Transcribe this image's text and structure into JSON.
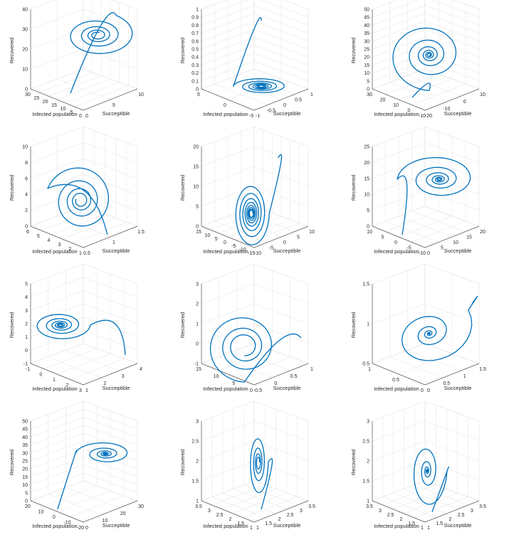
{
  "chart_data": [
    {
      "type": "line",
      "style": "spiral",
      "xlabel": "Infected population",
      "ylabel": "Succeptible",
      "zlabel": "Recovered",
      "xticks": [
        "30",
        "25",
        "20",
        "15",
        "10",
        "5",
        "0"
      ],
      "yticks": [
        "0",
        "5",
        "10"
      ],
      "zticks": [
        "0",
        "10",
        "20",
        "30",
        "40"
      ],
      "spiral": {
        "turns": 4,
        "start_angle": 300,
        "cx": 0.62,
        "cy": 0.22,
        "r": 0.38,
        "decay": 0.52,
        "ry_ratio": 0.7,
        "entry": [
          0.35,
          0.9
        ]
      }
    },
    {
      "type": "line",
      "style": "spiral",
      "xlabel": "Infected population",
      "ylabel": "Succeptible",
      "zlabel": "Recovered",
      "xticks": [
        "5",
        "0",
        "-5"
      ],
      "yticks": [
        "-1",
        "-0.5",
        "0",
        "0.5",
        "1"
      ],
      "zticks": [
        "0",
        "0.1",
        "0.2",
        "0.3",
        "0.4",
        "0.5",
        "0.6",
        "0.7",
        "0.8",
        "0.9",
        "1"
      ],
      "spiral": {
        "turns": 6,
        "start_angle": 180,
        "cx": 0.55,
        "cy": 0.82,
        "r": 0.28,
        "decay": 0.4,
        "ry_ratio": 0.35,
        "entry": [
          0.55,
          0.05
        ]
      }
    },
    {
      "type": "line",
      "style": "spiral",
      "xlabel": "Infected population",
      "ylabel": "Succeptible",
      "zlabel": "Recovered",
      "xticks": [
        "30",
        "20",
        "10",
        "0",
        "-10"
      ],
      "yticks": [
        "-20",
        "-10",
        "0",
        "10"
      ],
      "zticks": [
        "0",
        "5",
        "10",
        "15",
        "20",
        "25",
        "30",
        "35",
        "40",
        "45",
        "50"
      ],
      "spiral": {
        "turns": 6,
        "start_angle": 90,
        "cx": 0.52,
        "cy": 0.45,
        "r": 0.42,
        "decay": 0.6,
        "ry_ratio": 1.0,
        "entry": [
          0.35,
          0.95
        ]
      }
    },
    {
      "type": "line",
      "style": "spiral",
      "xlabel": "Infected population",
      "ylabel": "Succeptible",
      "zlabel": "Recovered",
      "xticks": [
        "6",
        "5",
        "4",
        "3",
        "2",
        "1"
      ],
      "yticks": [
        "0.5",
        "1",
        "1.5"
      ],
      "zticks": [
        "0",
        "2",
        "4",
        "6",
        "8",
        "10"
      ],
      "spiral": {
        "turns": 4,
        "start_angle": 200,
        "cx": 0.45,
        "cy": 0.55,
        "r": 0.35,
        "decay": 0.5,
        "ry_ratio": 1.2,
        "entry": [
          0.72,
          0.95
        ]
      }
    },
    {
      "type": "line",
      "style": "spiral",
      "xlabel": "Infected population",
      "ylabel": "Succeptible",
      "zlabel": "Recovered",
      "xticks": [
        "15",
        "10",
        "5",
        "0",
        "-5",
        "-10",
        "-15"
      ],
      "yticks": [
        "-10",
        "-5",
        "0",
        "5",
        "10"
      ],
      "zticks": [
        "0",
        "5",
        "10",
        "15",
        "20"
      ],
      "spiral": {
        "turns": 8,
        "start_angle": 0,
        "cx": 0.45,
        "cy": 0.7,
        "r": 0.18,
        "decay": 0.3,
        "ry_ratio": 2.2,
        "entry": [
          0.72,
          0.05
        ]
      }
    },
    {
      "type": "line",
      "style": "spiral",
      "xlabel": "Infected population",
      "ylabel": "Succeptible",
      "zlabel": "Recovered",
      "xticks": [
        "10",
        "5",
        "0",
        "-5",
        "-10"
      ],
      "yticks": [
        "0",
        "5",
        "10",
        "15",
        "20"
      ],
      "zticks": [
        "0",
        "5",
        "10",
        "15",
        "20",
        "25"
      ],
      "spiral": {
        "turns": 6,
        "start_angle": 180,
        "cx": 0.62,
        "cy": 0.3,
        "r": 0.42,
        "decay": 0.6,
        "ry_ratio": 0.7,
        "entry": [
          0.25,
          0.95
        ]
      }
    },
    {
      "type": "line",
      "style": "spiral",
      "xlabel": "Infected population",
      "ylabel": "Succeptible",
      "zlabel": "Recovered",
      "xticks": [
        "-1",
        "0",
        "1",
        "2",
        "3"
      ],
      "yticks": [
        "1",
        "2",
        "3",
        "4"
      ],
      "zticks": [
        "-1",
        "0",
        "1",
        "2",
        "3",
        "4",
        "5"
      ],
      "spiral": {
        "turns": 6,
        "start_angle": 0,
        "cx": 0.25,
        "cy": 0.4,
        "r": 0.3,
        "decay": 0.5,
        "ry_ratio": 0.6,
        "entry": [
          0.9,
          0.75
        ]
      }
    },
    {
      "type": "line",
      "style": "spiral",
      "xlabel": "Infected population",
      "ylabel": "Succeptible",
      "zlabel": "Recovered",
      "xticks": [
        "15",
        "10",
        "5",
        "0"
      ],
      "yticks": [
        "-0.5",
        "0",
        "0.5",
        "1"
      ],
      "zticks": [
        "-1",
        "0",
        "1",
        "2",
        "3"
      ],
      "spiral": {
        "turns": 3,
        "start_angle": 90,
        "cx": 0.38,
        "cy": 0.65,
        "r": 0.38,
        "decay": 0.45,
        "ry_ratio": 1.1,
        "entry": [
          0.95,
          0.55
        ]
      }
    },
    {
      "type": "line",
      "style": "spiral",
      "xlabel": "Infected population",
      "ylabel": "Succeptible",
      "zlabel": "Recovered",
      "xticks": [
        "1",
        "0.5",
        "0"
      ],
      "yticks": [
        "0",
        "0.5",
        "1",
        "1.5"
      ],
      "zticks": [
        "0.5",
        "1",
        "1.5"
      ],
      "spiral": {
        "turns": 14,
        "start_angle": 0,
        "cx": 0.52,
        "cy": 0.5,
        "r": 0.48,
        "decay": 0.9,
        "ry_ratio": 0.85,
        "entry": [
          0.95,
          0.15
        ],
        "tilt": -35
      }
    },
    {
      "type": "line",
      "style": "spiral",
      "xlabel": "Infected population",
      "ylabel": "Succeptible",
      "zlabel": "Recovered",
      "xticks": [
        "20",
        "10",
        "0",
        "-10",
        "-20"
      ],
      "yticks": [
        "0",
        "10",
        "20",
        "30"
      ],
      "zticks": [
        "0",
        "5",
        "10",
        "15",
        "20",
        "25",
        "30",
        "35",
        "40",
        "45",
        "50"
      ],
      "spiral": {
        "turns": 6,
        "start_angle": 180,
        "cx": 0.7,
        "cy": 0.3,
        "r": 0.3,
        "decay": 0.65,
        "ry_ratio": 0.5,
        "entry": [
          0.22,
          0.95
        ]
      }
    },
    {
      "type": "line",
      "style": "spiral",
      "xlabel": "Infected population",
      "ylabel": "Succeptible",
      "zlabel": "Recovered",
      "xticks": [
        "3.5",
        "3",
        "2.5",
        "2",
        "1.5",
        "1"
      ],
      "yticks": [
        "1",
        "1.5",
        "2",
        "2.5",
        "3",
        "3.5"
      ],
      "zticks": [
        "1",
        "1.5",
        "2",
        "2.5",
        "3"
      ],
      "spiral": {
        "turns": 4,
        "start_angle": 0,
        "cx": 0.52,
        "cy": 0.4,
        "r": 0.1,
        "decay": 0.5,
        "ry_ratio": 4.0,
        "entry": [
          0.55,
          0.95
        ]
      }
    },
    {
      "type": "line",
      "style": "spiral",
      "xlabel": "Infected population",
      "ylabel": "Succeptible",
      "zlabel": "Recovered",
      "xticks": [
        "3.5",
        "3",
        "2.5",
        "2",
        "1.5",
        "1"
      ],
      "yticks": [
        "1",
        "1.5",
        "2",
        "2.5",
        "3",
        "3.5"
      ],
      "zticks": [
        "1",
        "1.5",
        "2",
        "2.5",
        "3"
      ],
      "spiral": {
        "turns": 10,
        "start_angle": 0,
        "cx": 0.5,
        "cy": 0.5,
        "r": 0.2,
        "decay": 0.85,
        "ry_ratio": 2.4,
        "entry": [
          0.55,
          0.98
        ]
      }
    }
  ]
}
